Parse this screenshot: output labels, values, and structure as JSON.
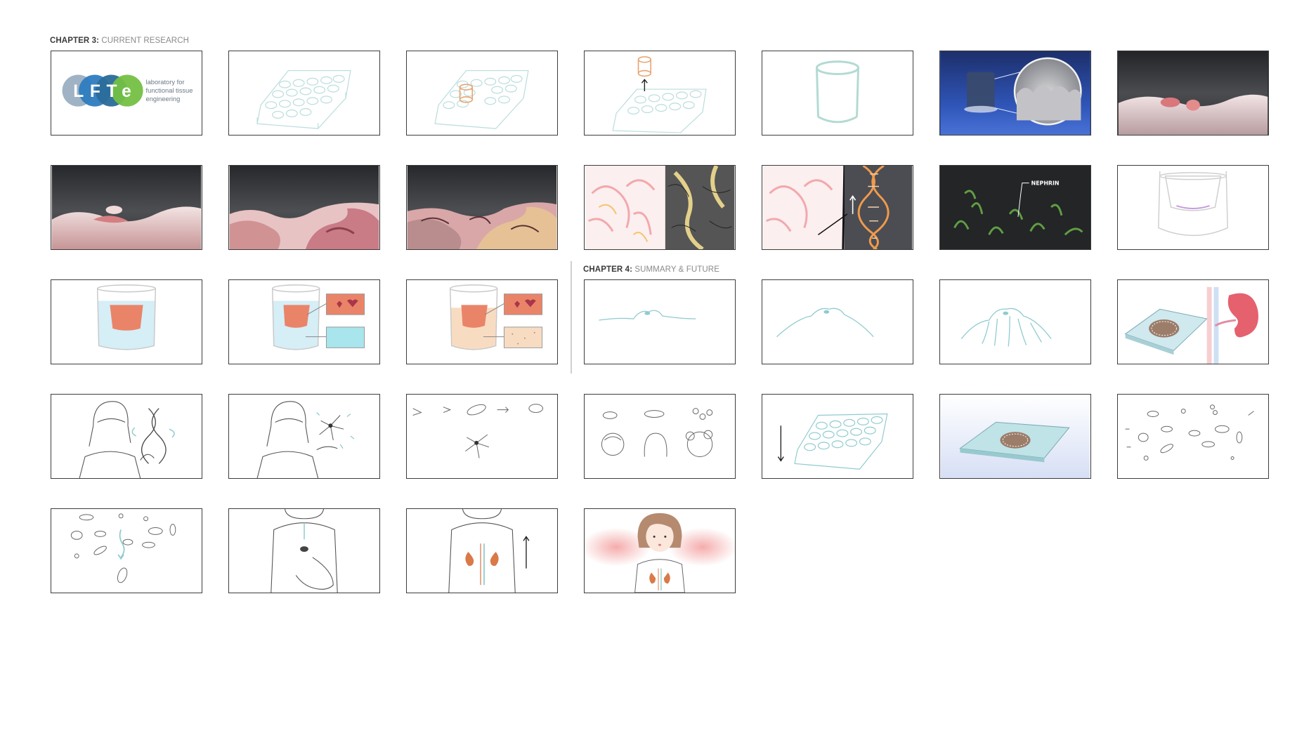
{
  "chapter3": {
    "label": "CHAPTER 3:",
    "title": "CURRENT RESEARCH"
  },
  "chapter4": {
    "label": "CHAPTER 4:",
    "title": "SUMMARY & FUTURE"
  },
  "logo": {
    "l": "L",
    "f": "F",
    "t": "T",
    "e": "e",
    "line1": "laboratory for",
    "line2": "functional tissue",
    "line3": "engineering",
    "colors": {
      "l": "#9fb3c4",
      "f": "#2e7cc0",
      "t": "#2a6c9a",
      "e": "#74c043"
    }
  },
  "annotations": {
    "nephrin": "NEPHRIN"
  },
  "palette": {
    "frame_border": "#3d3d3d",
    "sketch_teal": "#9ccfd0",
    "tissue_pink": "#e9a5a2",
    "dark_bg": "#2b2d30",
    "blue_bg": "#2d4fa8"
  }
}
